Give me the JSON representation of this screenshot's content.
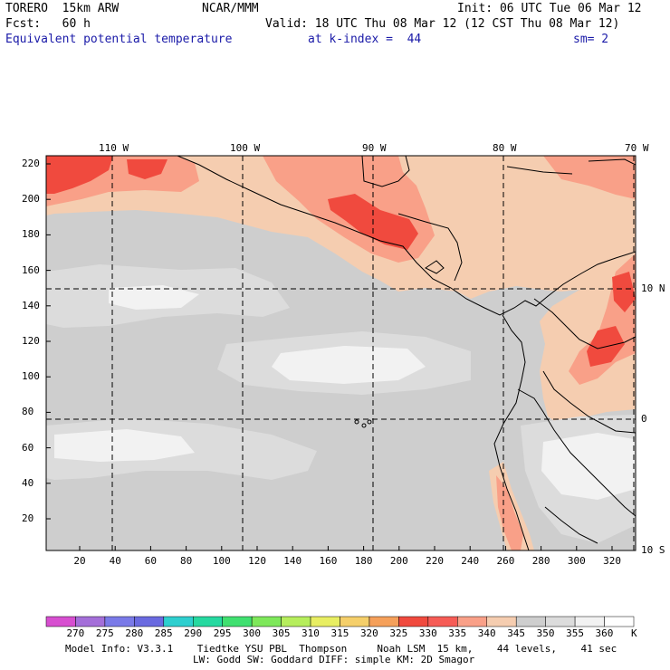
{
  "header": {
    "model": "TORERO  15km ARW",
    "center": "NCAR/MMM",
    "init": "Init: 06 UTC Tue 06 Mar 12",
    "forecast": "Fcst:   60 h",
    "valid": "Valid: 18 UTC Thu 08 Mar 12 (12 CST Thu 08 Mar 12)",
    "field": "Equivalent potential temperature",
    "level": "at k-index =  44",
    "smooth": "sm= 2"
  },
  "map": {
    "top_lon_labels": [
      "110 W",
      "100 W",
      "90 W",
      "80 W",
      "70 W"
    ],
    "right_lat_labels": [
      "10 N",
      "0",
      "10 S"
    ],
    "y_ticks": [
      "220",
      "200",
      "180",
      "160",
      "140",
      "120",
      "100",
      "80",
      "60",
      "40",
      "20"
    ],
    "x_ticks": [
      "20",
      "40",
      "60",
      "80",
      "100",
      "120",
      "140",
      "160",
      "180",
      "200",
      "220",
      "240",
      "260",
      "280",
      "300",
      "320"
    ]
  },
  "colorbar": {
    "labels": [
      "270",
      "275",
      "280",
      "285",
      "290",
      "295",
      "300",
      "305",
      "310",
      "315",
      "320",
      "325",
      "330",
      "335",
      "340",
      "345",
      "350",
      "355",
      "360"
    ],
    "unit": "K",
    "colors": [
      "#d74fd0",
      "#a46fd9",
      "#7a7ae8",
      "#6a6ae0",
      "#2ecfcf",
      "#26d9a0",
      "#40e070",
      "#7ee85a",
      "#b6ee5c",
      "#e8ee62",
      "#f5cf6a",
      "#f5a05a",
      "#f04a3e",
      "#f65c56",
      "#f9a088",
      "#f5cdb0",
      "#cecece",
      "#dcdcdc",
      "#f2f2f2"
    ]
  },
  "footer": {
    "line1": "Model Info: V3.3.1    Tiedtke YSU PBL  Thompson     Noah LSM  15 km,    44 levels,    41 sec",
    "line2": "LW: Godd SW: Goddard DIFF: simple KM: 2D Smagor"
  }
}
